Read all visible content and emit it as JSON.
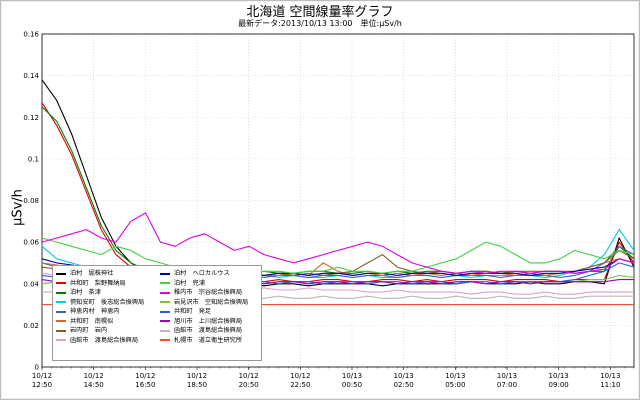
{
  "chart_data": {
    "type": "line",
    "title": "北海道 空間線量率グラフ",
    "subtitle": "最新データ:2013/10/13 13:00　単位:μSv/h",
    "ylabel": "μSv/h",
    "xlabel": "",
    "ylim": [
      0,
      0.16
    ],
    "yticks": [
      "0",
      "0.02",
      "0.04",
      "0.06",
      "0.08",
      "0.1",
      "0.12",
      "0.14",
      "0.16"
    ],
    "x_tick_labels": [
      {
        "date": "10/12",
        "time": "12:50"
      },
      {
        "date": "10/12",
        "time": "14:50"
      },
      {
        "date": "10/12",
        "time": "16:50"
      },
      {
        "date": "10/12",
        "time": "18:50"
      },
      {
        "date": "10/12",
        "time": "20:50"
      },
      {
        "date": "10/12",
        "time": "22:50"
      },
      {
        "date": "10/13",
        "time": "00:50"
      },
      {
        "date": "10/13",
        "time": "02:50"
      },
      {
        "date": "10/13",
        "time": "05:00"
      },
      {
        "date": "10/13",
        "time": "07:00"
      },
      {
        "date": "10/13",
        "time": "09:00"
      },
      {
        "date": "10/13",
        "time": "11:10"
      }
    ],
    "grid": true,
    "legend_position": "bottom-left",
    "series": [
      {
        "name": "泊村　堀株神社",
        "color": "#000000",
        "values": [
          0.138,
          0.128,
          0.112,
          0.092,
          0.072,
          0.058,
          0.05,
          0.046,
          0.044,
          0.043,
          0.042,
          0.041,
          0.04,
          0.04,
          0.04,
          0.039,
          0.04,
          0.04,
          0.039,
          0.04,
          0.04,
          0.04,
          0.04,
          0.039,
          0.04,
          0.04,
          0.04,
          0.04,
          0.04,
          0.041,
          0.04,
          0.04,
          0.04,
          0.041,
          0.04,
          0.04,
          0.041,
          0.041,
          0.04,
          0.062,
          0.048
        ]
      },
      {
        "name": "共和町　梨野舞納局",
        "color": "#e00000",
        "values": [
          0.127,
          0.116,
          0.102,
          0.084,
          0.066,
          0.054,
          0.048,
          0.045,
          0.044,
          0.043,
          0.042,
          0.042,
          0.041,
          0.042,
          0.041,
          0.041,
          0.042,
          0.041,
          0.041,
          0.042,
          0.042,
          0.041,
          0.041,
          0.042,
          0.042,
          0.041,
          0.042,
          0.041,
          0.042,
          0.042,
          0.042,
          0.041,
          0.042,
          0.042,
          0.042,
          0.041,
          0.042,
          0.042,
          0.042,
          0.06,
          0.05
        ]
      },
      {
        "name": "泊村　茶津",
        "color": "#008000",
        "values": [
          0.125,
          0.118,
          0.104,
          0.086,
          0.068,
          0.056,
          0.05,
          0.047,
          0.046,
          0.045,
          0.046,
          0.045,
          0.045,
          0.046,
          0.045,
          0.046,
          0.045,
          0.045,
          0.046,
          0.046,
          0.045,
          0.045,
          0.046,
          0.045,
          0.046,
          0.045,
          0.046,
          0.046,
          0.045,
          0.046,
          0.046,
          0.045,
          0.046,
          0.045,
          0.046,
          0.046,
          0.045,
          0.046,
          0.046,
          0.058,
          0.052
        ]
      },
      {
        "name": "倶知安町　後志総合振興局",
        "color": "#00c8e6",
        "values": [
          0.058,
          0.052,
          0.05,
          0.048,
          0.046,
          0.045,
          0.044,
          0.044,
          0.043,
          0.044,
          0.043,
          0.043,
          0.044,
          0.043,
          0.043,
          0.044,
          0.043,
          0.044,
          0.043,
          0.043,
          0.044,
          0.043,
          0.044,
          0.043,
          0.043,
          0.044,
          0.044,
          0.043,
          0.044,
          0.043,
          0.044,
          0.044,
          0.044,
          0.044,
          0.043,
          0.044,
          0.046,
          0.048,
          0.054,
          0.066,
          0.056
        ]
      },
      {
        "name": "神恵内村　神恵内",
        "color": "#4060b0",
        "values": [
          0.05,
          0.048,
          0.047,
          0.046,
          0.045,
          0.045,
          0.044,
          0.044,
          0.044,
          0.044,
          0.043,
          0.044,
          0.043,
          0.044,
          0.044,
          0.043,
          0.044,
          0.044,
          0.043,
          0.044,
          0.044,
          0.043,
          0.044,
          0.044,
          0.043,
          0.044,
          0.044,
          0.043,
          0.044,
          0.044,
          0.044,
          0.043,
          0.044,
          0.044,
          0.044,
          0.043,
          0.044,
          0.046,
          0.05,
          0.058,
          0.054
        ]
      },
      {
        "name": "共和町　南幌似",
        "color": "#e06030",
        "values": [
          0.05,
          0.049,
          0.048,
          0.047,
          0.046,
          0.045,
          0.045,
          0.044,
          0.044,
          0.045,
          0.044,
          0.044,
          0.045,
          0.044,
          0.045,
          0.044,
          0.044,
          0.045,
          0.044,
          0.05,
          0.046,
          0.044,
          0.045,
          0.044,
          0.045,
          0.044,
          0.045,
          0.044,
          0.045,
          0.044,
          0.045,
          0.045,
          0.044,
          0.045,
          0.044,
          0.045,
          0.046,
          0.048,
          0.05,
          0.052,
          0.05
        ]
      },
      {
        "name": "岩内町　岩内",
        "color": "#806020",
        "values": [
          0.048,
          0.047,
          0.046,
          0.046,
          0.045,
          0.045,
          0.044,
          0.044,
          0.045,
          0.044,
          0.044,
          0.045,
          0.044,
          0.045,
          0.044,
          0.044,
          0.045,
          0.044,
          0.045,
          0.044,
          0.045,
          0.046,
          0.05,
          0.054,
          0.048,
          0.046,
          0.045,
          0.046,
          0.045,
          0.046,
          0.046,
          0.045,
          0.046,
          0.046,
          0.046,
          0.046,
          0.046,
          0.048,
          0.05,
          0.056,
          0.052
        ]
      },
      {
        "name": "函館市　渡島総合振興局",
        "color": "#e0a0c8",
        "values": [
          0.045,
          0.044,
          0.043,
          0.042,
          0.041,
          0.04,
          0.04,
          0.039,
          0.039,
          0.038,
          0.039,
          0.038,
          0.038,
          0.038,
          0.037,
          0.038,
          0.037,
          0.037,
          0.038,
          0.037,
          0.037,
          0.037,
          0.036,
          0.036,
          0.037,
          0.036,
          0.036,
          0.036,
          0.036,
          0.035,
          0.036,
          0.036,
          0.035,
          0.035,
          0.036,
          0.035,
          0.035,
          0.036,
          0.036,
          0.036,
          0.036
        ]
      },
      {
        "name": "泊村　ヘロカルウス",
        "color": "#0000a0",
        "values": [
          0.052,
          0.05,
          0.049,
          0.048,
          0.047,
          0.046,
          0.046,
          0.045,
          0.045,
          0.045,
          0.044,
          0.045,
          0.045,
          0.044,
          0.045,
          0.044,
          0.045,
          0.045,
          0.044,
          0.045,
          0.045,
          0.044,
          0.045,
          0.045,
          0.044,
          0.045,
          0.045,
          0.045,
          0.044,
          0.045,
          0.045,
          0.045,
          0.045,
          0.044,
          0.045,
          0.045,
          0.046,
          0.047,
          0.048,
          0.052,
          0.05
        ]
      },
      {
        "name": "泊村　兜浦",
        "color": "#40d040",
        "values": [
          0.062,
          0.06,
          0.058,
          0.056,
          0.054,
          0.058,
          0.056,
          0.052,
          0.05,
          0.048,
          0.047,
          0.046,
          0.046,
          0.046,
          0.045,
          0.046,
          0.046,
          0.045,
          0.046,
          0.046,
          0.048,
          0.046,
          0.046,
          0.045,
          0.046,
          0.046,
          0.048,
          0.05,
          0.052,
          0.056,
          0.06,
          0.058,
          0.054,
          0.05,
          0.05,
          0.052,
          0.056,
          0.054,
          0.052,
          0.056,
          0.054
        ]
      },
      {
        "name": "稚内市　宗谷総合振興局",
        "color": "#e000e0",
        "values": [
          0.06,
          0.062,
          0.064,
          0.066,
          0.062,
          0.06,
          0.07,
          0.074,
          0.06,
          0.058,
          0.062,
          0.064,
          0.06,
          0.056,
          0.058,
          0.054,
          0.052,
          0.05,
          0.052,
          0.054,
          0.056,
          0.058,
          0.06,
          0.058,
          0.054,
          0.05,
          0.048,
          0.046,
          0.045,
          0.046,
          0.045,
          0.046,
          0.046,
          0.045,
          0.046,
          0.046,
          0.045,
          0.046,
          0.047,
          0.052,
          0.05
        ]
      },
      {
        "name": "岩見沢市　空知総合振興局",
        "color": "#80c040",
        "values": [
          0.04,
          0.041,
          0.041,
          0.04,
          0.041,
          0.041,
          0.04,
          0.041,
          0.041,
          0.04,
          0.041,
          0.041,
          0.04,
          0.041,
          0.041,
          0.04,
          0.041,
          0.041,
          0.04,
          0.041,
          0.041,
          0.04,
          0.041,
          0.041,
          0.04,
          0.041,
          0.041,
          0.04,
          0.041,
          0.041,
          0.04,
          0.041,
          0.041,
          0.04,
          0.041,
          0.041,
          0.041,
          0.042,
          0.042,
          0.044,
          0.043
        ]
      },
      {
        "name": "共和町　発足",
        "color": "#2060e0",
        "values": [
          0.044,
          0.043,
          0.043,
          0.042,
          0.042,
          0.041,
          0.041,
          0.041,
          0.041,
          0.041,
          0.04,
          0.041,
          0.041,
          0.04,
          0.041,
          0.041,
          0.04,
          0.041,
          0.041,
          0.04,
          0.041,
          0.041,
          0.04,
          0.041,
          0.041,
          0.04,
          0.041,
          0.041,
          0.04,
          0.041,
          0.041,
          0.04,
          0.041,
          0.041,
          0.041,
          0.041,
          0.042,
          0.044,
          0.046,
          0.05,
          0.048
        ]
      },
      {
        "name": "旭川市　上川総合振興局",
        "color": "#a000c0",
        "values": [
          0.042,
          0.041,
          0.041,
          0.04,
          0.041,
          0.041,
          0.04,
          0.041,
          0.041,
          0.04,
          0.041,
          0.041,
          0.04,
          0.041,
          0.041,
          0.04,
          0.041,
          0.041,
          0.04,
          0.041,
          0.041,
          0.04,
          0.041,
          0.041,
          0.04,
          0.041,
          0.041,
          0.04,
          0.041,
          0.041,
          0.04,
          0.041,
          0.041,
          0.04,
          0.041,
          0.041,
          0.041,
          0.041,
          0.041,
          0.042,
          0.042
        ]
      },
      {
        "name": "函館市　渡島総合振興局",
        "color": "#b8b8b8",
        "values": [
          0.036,
          0.036,
          0.035,
          0.035,
          0.035,
          0.034,
          0.034,
          0.034,
          0.034,
          0.034,
          0.033,
          0.034,
          0.033,
          0.034,
          0.033,
          0.033,
          0.034,
          0.033,
          0.033,
          0.034,
          0.033,
          0.033,
          0.034,
          0.033,
          0.033,
          0.034,
          0.033,
          0.033,
          0.034,
          0.033,
          0.033,
          0.034,
          0.033,
          0.033,
          0.034,
          0.033,
          0.033,
          0.034,
          0.034,
          0.034,
          0.034
        ]
      },
      {
        "name": "札幌市　道立衛生研究所",
        "color": "#f05030",
        "values": [
          0.03,
          0.03,
          0.03,
          0.03,
          0.03,
          0.03,
          0.03,
          0.03,
          0.03,
          0.03,
          0.03,
          0.03,
          0.03,
          0.03,
          0.03,
          0.03,
          0.03,
          0.03,
          0.03,
          0.03,
          0.03,
          0.03,
          0.03,
          0.03,
          0.03,
          0.03,
          0.03,
          0.03,
          0.03,
          0.03,
          0.03,
          0.03,
          0.03,
          0.03,
          0.03,
          0.03,
          0.03,
          0.03,
          0.03,
          0.03,
          0.03
        ]
      }
    ]
  }
}
